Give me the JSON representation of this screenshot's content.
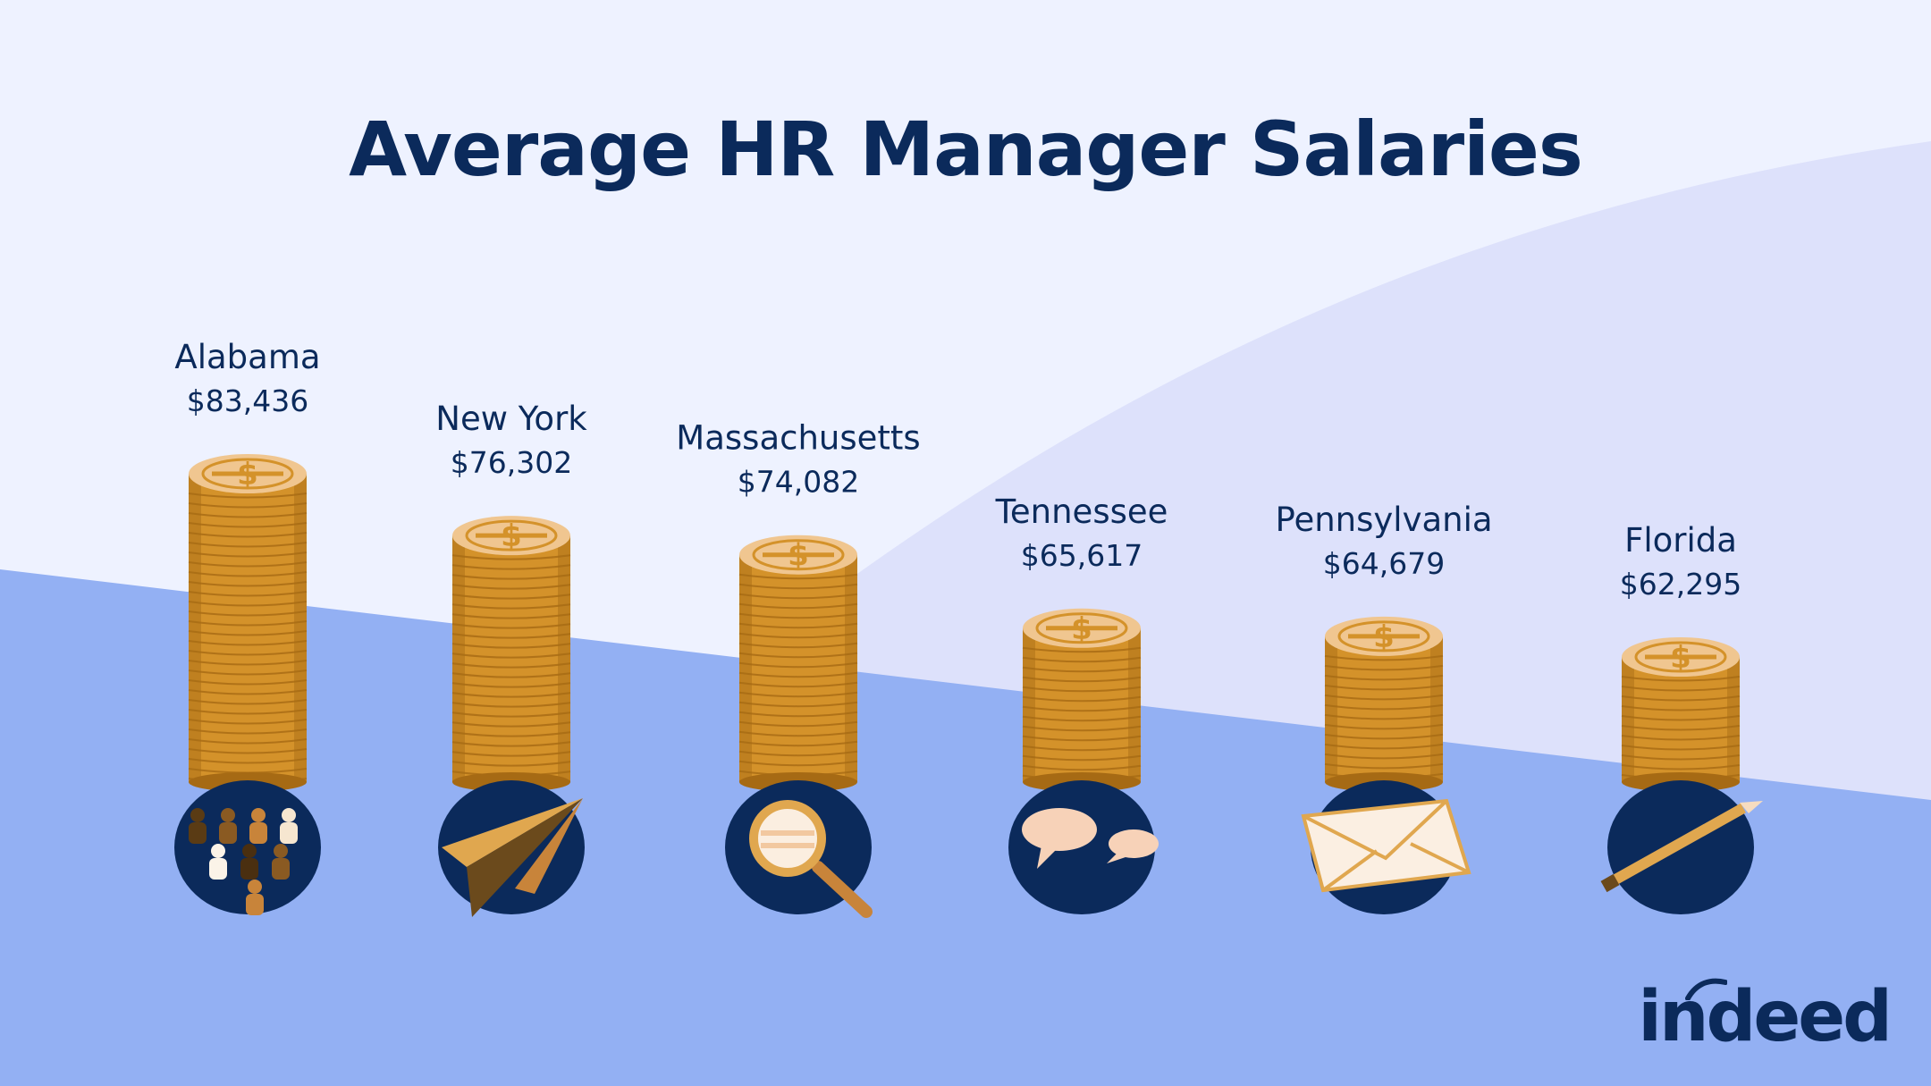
{
  "title": "Average HR Manager Salaries",
  "brand": "indeed",
  "colors": {
    "navy": "#0b2a5b",
    "coin": "#d4922a",
    "coin_dark": "#a66a14",
    "coin_top": "#f0c690",
    "bg_light": "#eef2ff",
    "bg_mid": "#dde1fb",
    "bg_blue": "#93b0f3"
  },
  "chart_data": {
    "type": "bar",
    "categories": [
      "Alabama",
      "New York",
      "Massachusetts",
      "Tennessee",
      "Pennsylvania",
      "Florida"
    ],
    "values": [
      83436,
      76302,
      74082,
      65617,
      64679,
      62295
    ],
    "value_labels": [
      "$83,436",
      "$76,302",
      "$74,082",
      "$65,617",
      "$64,679",
      "$62,295"
    ],
    "icons": [
      "people-icon",
      "paper-plane-icon",
      "magnifier-icon",
      "speech-bubbles-icon",
      "envelope-icon",
      "pencil-icon"
    ],
    "title": "Average HR Manager Salaries",
    "xlabel": "",
    "ylabel": "",
    "grid": false,
    "legend": "none"
  }
}
